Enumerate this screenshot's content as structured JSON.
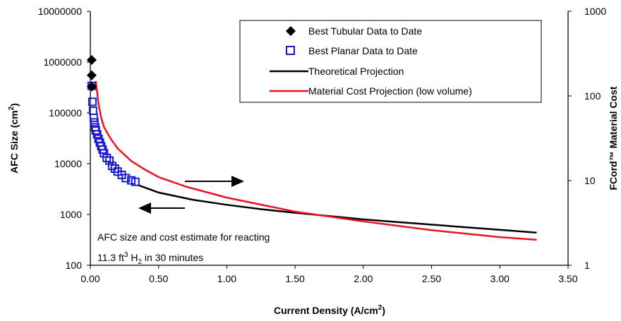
{
  "chart_data": {
    "type": "scatter",
    "x_axis": {
      "label": "Current Density (A/cm",
      "label_sup": "2",
      "label_end": ")",
      "range": [
        0,
        3.5
      ],
      "ticks": [
        0,
        0.5,
        1.0,
        1.5,
        2.0,
        2.5,
        3.0,
        3.5
      ],
      "tick_labels": [
        "0.00",
        "0.50",
        "1.00",
        "1.50",
        "2.00",
        "2.50",
        "3.00",
        "3.50"
      ]
    },
    "y_left": {
      "label": "AFC Size (cm",
      "label_sup": "2",
      "label_end": ")",
      "scale": "log",
      "range": [
        100,
        10000000
      ],
      "ticks": [
        100,
        1000,
        10000,
        100000,
        1000000,
        10000000
      ],
      "tick_labels": [
        "100",
        "1000",
        "10000",
        "100000",
        "1000000",
        "10000000"
      ]
    },
    "y_right": {
      "label": "FCord™ Material Cost",
      "scale": "log",
      "range": [
        1,
        1000
      ],
      "ticks": [
        1,
        10,
        100,
        1000
      ],
      "tick_labels": [
        "1",
        "10",
        "100",
        "1000"
      ]
    },
    "legend": {
      "position": "top-right",
      "entries": [
        {
          "label": "Best Tubular Data to Date",
          "marker": "diamond",
          "color": "#000000"
        },
        {
          "label": "Best Planar Data to Date",
          "marker": "square-open",
          "color": "#1a1acc"
        },
        {
          "label": "Theoretical Projection",
          "marker": "line",
          "color": "#000000"
        },
        {
          "label": "Material Cost Projection (low volume)",
          "marker": "line",
          "color": "#ee1122"
        }
      ]
    },
    "series": [
      {
        "name": "Best Tubular Data to Date",
        "axis": "left",
        "color": "#000000",
        "x": [
          0.01,
          0.01,
          0.01
        ],
        "y": [
          1100000,
          550000,
          330000
        ]
      },
      {
        "name": "Best Planar Data to Date",
        "axis": "left",
        "color": "#1a1acc",
        "x": [
          0.01,
          0.015,
          0.02,
          0.025,
          0.03,
          0.035,
          0.04,
          0.05,
          0.06,
          0.07,
          0.08,
          0.09,
          0.1,
          0.12,
          0.14,
          0.16,
          0.18,
          0.2,
          0.23,
          0.26,
          0.3,
          0.33
        ],
        "y": [
          340000,
          165000,
          110000,
          80000,
          65000,
          52000,
          45000,
          38000,
          31000,
          26000,
          22000,
          19000,
          16000,
          13000,
          11500,
          9000,
          8000,
          7000,
          6000,
          5200,
          4700,
          4400
        ]
      },
      {
        "name": "Theoretical Projection",
        "axis": "left",
        "color": "#000000",
        "x": [
          0.35,
          0.5,
          0.75,
          1.0,
          1.25,
          1.5,
          1.75,
          2.0,
          2.25,
          2.5,
          2.75,
          3.0,
          3.27
        ],
        "y": [
          3800,
          2700,
          1950,
          1550,
          1270,
          1080,
          930,
          800,
          710,
          630,
          560,
          500,
          440
        ]
      },
      {
        "name": "Material Cost Projection (low volume)",
        "axis": "right",
        "color": "#ee1122",
        "x": [
          0.04,
          0.06,
          0.08,
          0.1,
          0.15,
          0.2,
          0.3,
          0.4,
          0.5,
          0.7,
          1.0,
          1.5,
          2.0,
          2.5,
          3.0,
          3.27
        ],
        "y": [
          150,
          80,
          55,
          43,
          31,
          24,
          17,
          13.5,
          11,
          8.5,
          6.3,
          4.3,
          3.3,
          2.6,
          2.15,
          2.0
        ]
      }
    ],
    "annotations": {
      "note_line1": "AFC size and cost estimate for reacting",
      "note_line2_a": "11.3 ft",
      "note_line2_sup": "3",
      "note_line2_b": " H",
      "note_line2_sub": "2",
      "note_line2_c": " in 30 minutes",
      "arrows": [
        {
          "direction": "right",
          "meaning": "red series uses right axis"
        },
        {
          "direction": "left",
          "meaning": "black and blue series use left axis"
        }
      ]
    },
    "grid": false
  }
}
